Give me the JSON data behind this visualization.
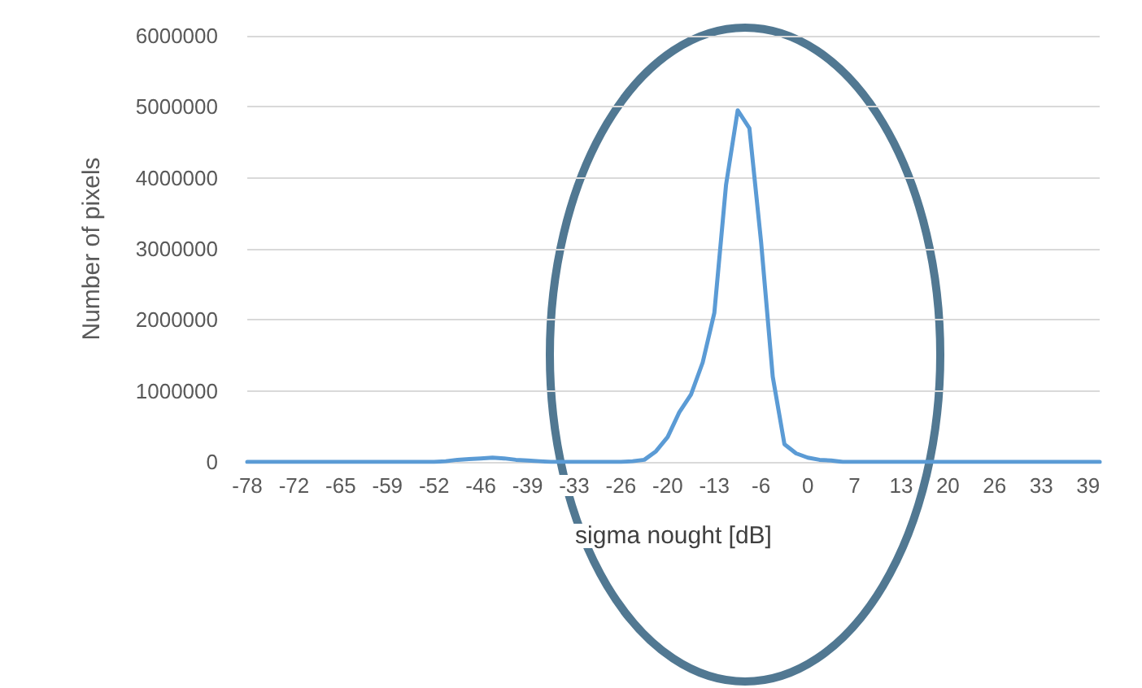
{
  "chart_data": {
    "type": "line",
    "xlabel": "sigma nought [dB]",
    "ylabel": "Number of pixels",
    "categories": [
      "-78",
      null,
      null,
      null,
      "-72",
      null,
      null,
      null,
      "-65",
      null,
      null,
      null,
      "-59",
      null,
      null,
      null,
      "-52",
      null,
      null,
      null,
      "-46",
      null,
      null,
      null,
      "-39",
      null,
      null,
      null,
      "-33",
      null,
      null,
      null,
      "-26",
      null,
      null,
      null,
      "-20",
      null,
      null,
      null,
      "-13",
      null,
      null,
      null,
      "-6",
      null,
      null,
      null,
      "0",
      null,
      null,
      null,
      "7",
      null,
      null,
      null,
      "13",
      null,
      null,
      null,
      "20",
      null,
      null,
      null,
      "26",
      null,
      null,
      null,
      "33",
      null,
      null,
      null,
      "39",
      null
    ],
    "series": [
      {
        "color": "#5b9bd5",
        "values": [
          0,
          0,
          0,
          0,
          0,
          0,
          0,
          0,
          0,
          0,
          0,
          0,
          0,
          0,
          0,
          0,
          0,
          10000,
          30000,
          40000,
          50000,
          60000,
          50000,
          30000,
          20000,
          10000,
          0,
          0,
          0,
          0,
          0,
          0,
          0,
          10000,
          30000,
          150000,
          350000,
          700000,
          950000,
          1400000,
          2100000,
          3900000,
          4950000,
          4700000,
          3100000,
          1200000,
          250000,
          120000,
          60000,
          30000,
          20000,
          0,
          0,
          0,
          0,
          0,
          0,
          0,
          0,
          0,
          0,
          0,
          0,
          0,
          0,
          0,
          0,
          0,
          0,
          0,
          0,
          0,
          0,
          0
        ]
      }
    ],
    "ylim": [
      0,
      6000000
    ],
    "yticks": [
      0,
      1000000,
      2000000,
      3000000,
      4000000,
      5000000,
      6000000
    ],
    "grid": "y",
    "marker": "none",
    "line_style": "solid"
  }
}
